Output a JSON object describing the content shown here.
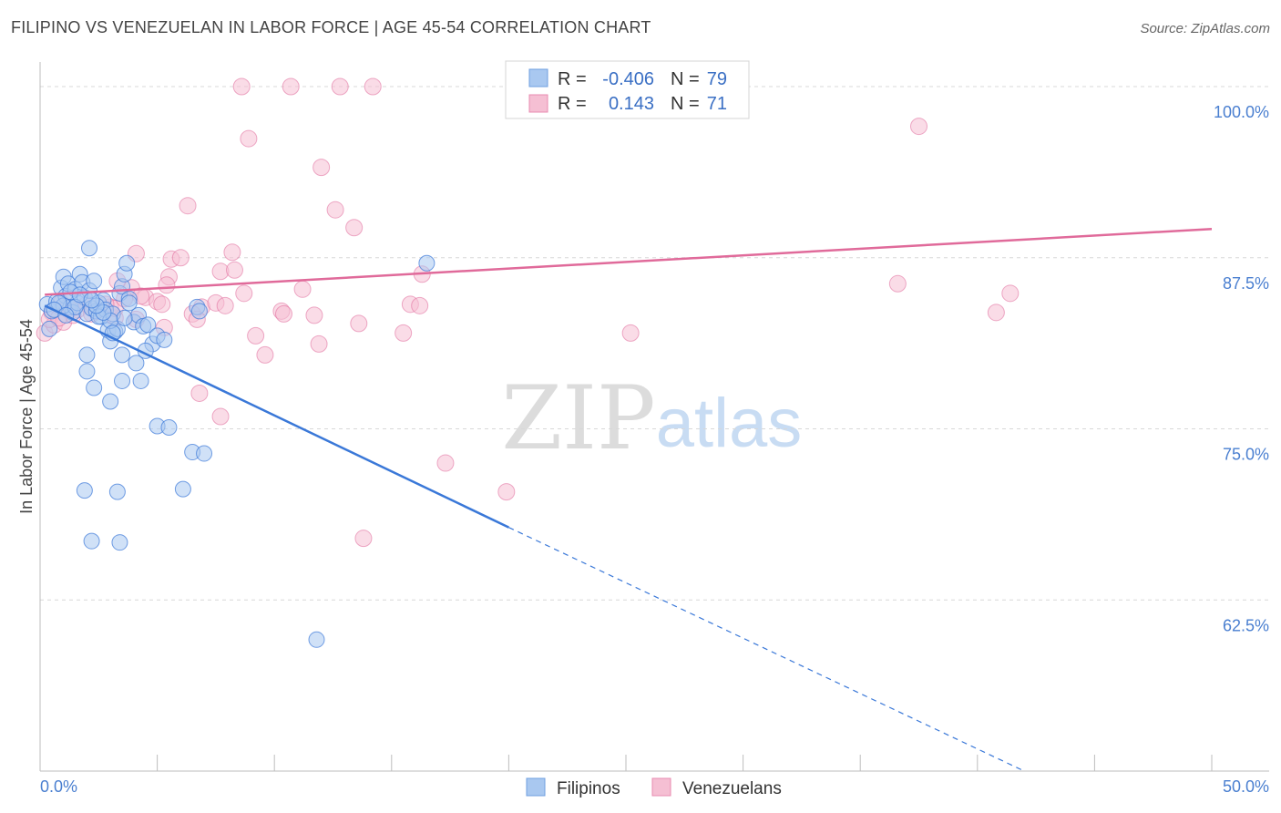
{
  "title": "FILIPINO VS VENEZUELAN IN LABOR FORCE | AGE 45-54 CORRELATION CHART",
  "source": "Source: ZipAtlas.com",
  "watermark": {
    "zip": "ZIP",
    "atlas": "atlas"
  },
  "colors": {
    "filipino": "#3a78d8",
    "filipino_fill": "#a9c8f0",
    "venezuelan": "#e06a9a",
    "venezuelan_fill": "#f5bfd3",
    "grid": "#d8d8d8",
    "axis_label": "#4a7fd0"
  },
  "chart_data": {
    "type": "scatter",
    "title": "FILIPINO VS VENEZUELAN IN LABOR FORCE | AGE 45-54 CORRELATION CHART",
    "ylabel": "In Labor Force | Age 45-54",
    "xlabel": "",
    "xlim": [
      0,
      50
    ],
    "ylim": [
      50,
      101
    ],
    "x_tick_labels": [
      "0.0%",
      "50.0%"
    ],
    "y_ticks": [
      62.5,
      75.0,
      87.5,
      100.0
    ],
    "y_tick_labels": [
      "62.5%",
      "75.0%",
      "87.5%",
      "100.0%"
    ],
    "legend": [
      {
        "r_label": "R =",
        "r_value": "-0.406",
        "n_label": "N =",
        "n_value": "79"
      },
      {
        "r_label": "R =",
        "r_value": "0.143",
        "n_label": "N =",
        "n_value": "71"
      }
    ],
    "series": [
      {
        "name": "Filipinos",
        "trend": {
          "x0": 0.2,
          "y0": 84.0,
          "x1": 20.0,
          "y1": 67.8,
          "dash_x1": 42.0,
          "dash_y1": 50.0
        },
        "points": [
          [
            0.3,
            84.1
          ],
          [
            0.5,
            83.6
          ],
          [
            0.7,
            84.3
          ],
          [
            0.9,
            85.3
          ],
          [
            1.0,
            86.1
          ],
          [
            1.1,
            84.7
          ],
          [
            1.2,
            85.6
          ],
          [
            1.3,
            83.9
          ],
          [
            1.4,
            83.5
          ],
          [
            1.5,
            85.2
          ],
          [
            1.6,
            84.2
          ],
          [
            1.7,
            86.3
          ],
          [
            1.8,
            85.7
          ],
          [
            1.9,
            84.6
          ],
          [
            2.0,
            83.4
          ],
          [
            2.1,
            85.1
          ],
          [
            2.2,
            83.8
          ],
          [
            2.3,
            85.8
          ],
          [
            2.4,
            83.6
          ],
          [
            2.5,
            84.2
          ],
          [
            2.6,
            83.2
          ],
          [
            2.7,
            84.4
          ],
          [
            2.8,
            83.7
          ],
          [
            2.9,
            82.2
          ],
          [
            3.0,
            81.4
          ],
          [
            3.1,
            83.4
          ],
          [
            3.2,
            82.1
          ],
          [
            3.3,
            82.3
          ],
          [
            3.4,
            84.9
          ],
          [
            3.5,
            85.4
          ],
          [
            3.6,
            86.3
          ],
          [
            3.7,
            87.1
          ],
          [
            3.8,
            84.5
          ],
          [
            4.0,
            82.8
          ],
          [
            4.2,
            83.3
          ],
          [
            4.4,
            82.5
          ],
          [
            4.6,
            82.6
          ],
          [
            4.8,
            81.2
          ],
          [
            5.0,
            81.8
          ],
          [
            5.3,
            81.5
          ],
          [
            2.1,
            88.2
          ],
          [
            2.0,
            79.2
          ],
          [
            2.3,
            78.0
          ],
          [
            2.0,
            80.4
          ],
          [
            3.0,
            77.0
          ],
          [
            3.5,
            78.5
          ],
          [
            4.1,
            79.8
          ],
          [
            4.3,
            78.5
          ],
          [
            3.5,
            80.4
          ],
          [
            5.0,
            75.2
          ],
          [
            5.5,
            75.1
          ],
          [
            6.5,
            73.3
          ],
          [
            7.0,
            73.2
          ],
          [
            6.1,
            70.6
          ],
          [
            1.9,
            70.5
          ],
          [
            3.3,
            70.4
          ],
          [
            2.2,
            66.8
          ],
          [
            3.4,
            66.7
          ],
          [
            11.8,
            59.6
          ],
          [
            16.5,
            87.1
          ],
          [
            6.7,
            83.9
          ],
          [
            6.8,
            83.6
          ],
          [
            0.4,
            82.3
          ],
          [
            1.0,
            84.0
          ],
          [
            1.5,
            83.9
          ],
          [
            2.5,
            83.2
          ],
          [
            3.0,
            82.9
          ],
          [
            0.8,
            84.2
          ],
          [
            1.3,
            85.0
          ],
          [
            2.7,
            83.5
          ],
          [
            3.8,
            84.2
          ],
          [
            4.5,
            80.7
          ],
          [
            0.6,
            83.7
          ],
          [
            1.7,
            84.8
          ],
          [
            2.4,
            84.0
          ],
          [
            3.1,
            82.0
          ],
          [
            3.6,
            83.1
          ],
          [
            1.1,
            83.3
          ],
          [
            2.2,
            84.4
          ]
        ]
      },
      {
        "name": "Venezuelans",
        "trend": {
          "x0": 0.2,
          "y0": 84.8,
          "x1": 50.0,
          "y1": 89.6
        },
        "points": [
          [
            8.6,
            100.0
          ],
          [
            10.7,
            100.0
          ],
          [
            12.8,
            100.0
          ],
          [
            14.2,
            100.0
          ],
          [
            8.9,
            96.2
          ],
          [
            37.5,
            97.1
          ],
          [
            12.0,
            94.1
          ],
          [
            12.6,
            91.0
          ],
          [
            6.3,
            91.3
          ],
          [
            13.4,
            89.7
          ],
          [
            4.1,
            87.8
          ],
          [
            5.6,
            87.4
          ],
          [
            6.0,
            87.5
          ],
          [
            8.2,
            87.9
          ],
          [
            7.7,
            86.5
          ],
          [
            8.3,
            86.6
          ],
          [
            5.5,
            86.1
          ],
          [
            16.3,
            86.3
          ],
          [
            36.6,
            85.6
          ],
          [
            41.4,
            84.9
          ],
          [
            5.4,
            85.5
          ],
          [
            3.9,
            85.3
          ],
          [
            3.3,
            85.8
          ],
          [
            8.7,
            84.9
          ],
          [
            11.2,
            85.2
          ],
          [
            4.5,
            84.6
          ],
          [
            5.0,
            84.3
          ],
          [
            5.2,
            84.1
          ],
          [
            6.9,
            83.9
          ],
          [
            6.5,
            83.4
          ],
          [
            7.5,
            84.2
          ],
          [
            7.9,
            84.0
          ],
          [
            10.3,
            83.6
          ],
          [
            10.4,
            83.4
          ],
          [
            11.7,
            83.3
          ],
          [
            15.8,
            84.1
          ],
          [
            16.2,
            84.0
          ],
          [
            40.8,
            83.5
          ],
          [
            13.6,
            82.7
          ],
          [
            6.7,
            83.0
          ],
          [
            5.3,
            82.4
          ],
          [
            3.2,
            83.1
          ],
          [
            3.0,
            83.9
          ],
          [
            2.0,
            84.1
          ],
          [
            1.6,
            83.7
          ],
          [
            0.9,
            84.2
          ],
          [
            0.5,
            83.5
          ],
          [
            0.2,
            82.0
          ],
          [
            0.6,
            82.6
          ],
          [
            0.4,
            83.0
          ],
          [
            1.0,
            82.8
          ],
          [
            1.4,
            83.3
          ],
          [
            2.4,
            83.6
          ],
          [
            3.2,
            83.8
          ],
          [
            9.2,
            81.8
          ],
          [
            11.9,
            81.2
          ],
          [
            9.6,
            80.4
          ],
          [
            15.5,
            82.0
          ],
          [
            25.2,
            82.0
          ],
          [
            6.8,
            77.6
          ],
          [
            7.7,
            75.9
          ],
          [
            17.3,
            72.5
          ],
          [
            19.9,
            70.4
          ],
          [
            13.8,
            67.0
          ],
          [
            4.1,
            83.0
          ],
          [
            2.8,
            84.1
          ],
          [
            4.3,
            84.7
          ],
          [
            1.2,
            83.9
          ],
          [
            0.8,
            83.1
          ],
          [
            2.2,
            83.4
          ],
          [
            3.6,
            84.5
          ]
        ]
      }
    ]
  }
}
